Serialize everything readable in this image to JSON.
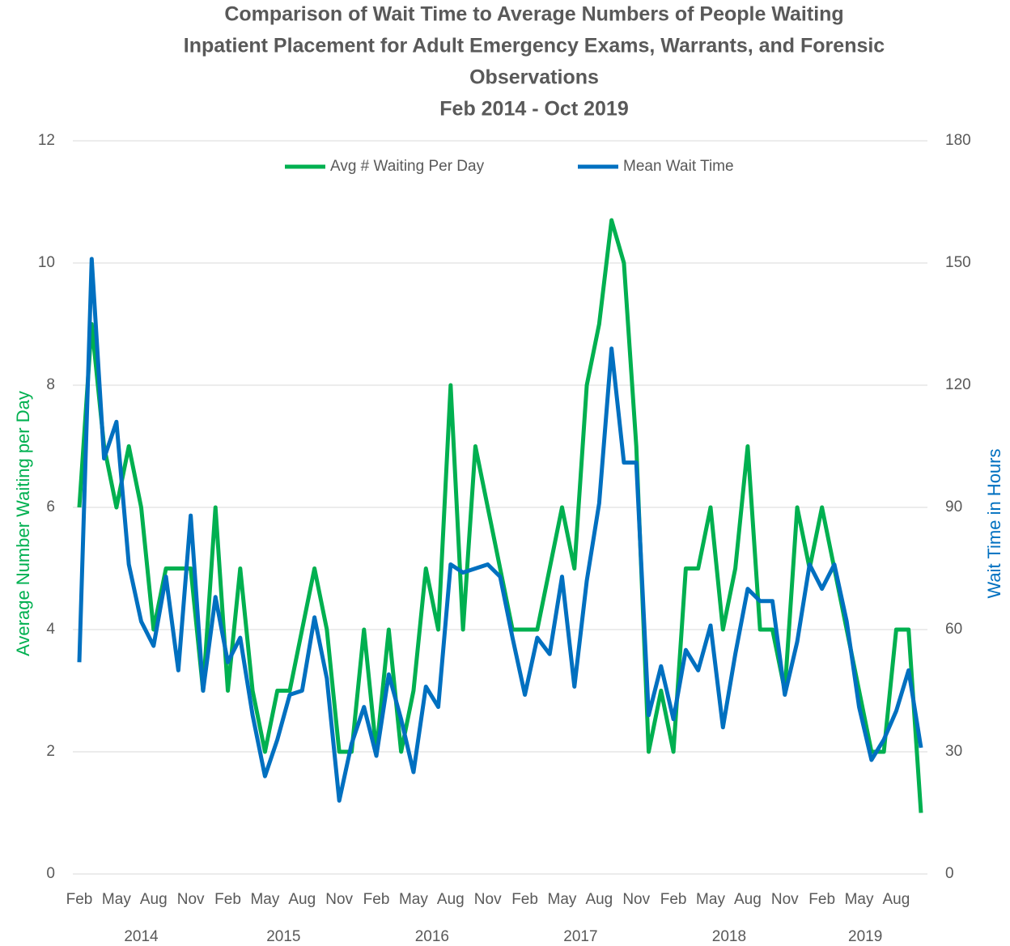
{
  "chart_data": {
    "type": "line",
    "title": [
      "Comparison of Wait Time to Average Numbers of People Waiting",
      "Inpatient Placement for Adult Emergency Exams, Warrants, and Forensic",
      "Observations",
      "Feb 2014 - Oct 2019"
    ],
    "categories": [
      "Feb",
      null,
      null,
      "May",
      null,
      null,
      "Aug",
      null,
      null,
      "Nov",
      null,
      null,
      "Feb",
      null,
      null,
      "May",
      null,
      null,
      "Aug",
      null,
      null,
      "Nov",
      null,
      null,
      "Feb",
      null,
      null,
      "May",
      null,
      null,
      "Aug",
      null,
      null,
      "Nov",
      null,
      null,
      "Feb",
      null,
      null,
      "May",
      null,
      null,
      "Aug",
      null,
      null,
      "Nov",
      null,
      null,
      "Feb",
      null,
      null,
      "May",
      null,
      null,
      "Aug",
      null,
      null,
      "Nov",
      null,
      null,
      "Feb",
      null,
      null,
      "May",
      null,
      null,
      "Aug",
      null,
      null
    ],
    "years": [
      "2014",
      "2015",
      "2016",
      "2017",
      "2018",
      "2019"
    ],
    "y_label": "Average Number Waiting per Day",
    "y2_label": "Wait Time in Hours",
    "ylim": [
      0,
      12
    ],
    "yticks": [
      0,
      2,
      4,
      6,
      8,
      10,
      12
    ],
    "y2lim": [
      0,
      180
    ],
    "y2ticks": [
      0,
      30,
      60,
      90,
      120,
      150,
      180
    ],
    "grid": true,
    "legend": "top",
    "series": [
      {
        "name": "Avg # Waiting Per Day",
        "color": "#00b050",
        "values": [
          6,
          9,
          7,
          6,
          7,
          6,
          4,
          5,
          5,
          5,
          3,
          6,
          3,
          5,
          3,
          2,
          3,
          3,
          4,
          5,
          4,
          2,
          2,
          4,
          2,
          4,
          2,
          3,
          5,
          4,
          8,
          4,
          7,
          6,
          5,
          4,
          4,
          4,
          5,
          6,
          5,
          8,
          9,
          10.7,
          10,
          7,
          2,
          3,
          2,
          5,
          5,
          6,
          4,
          5,
          7,
          4,
          4,
          3,
          6,
          5,
          6,
          5,
          4,
          3,
          2,
          2,
          4,
          4,
          1
        ]
      },
      {
        "name": "Mean Wait Time",
        "color": "#0070c0",
        "axis": "y2",
        "values": [
          52,
          151,
          102,
          111,
          76,
          62,
          56,
          73,
          50,
          88,
          45,
          68,
          52,
          58,
          39,
          24,
          33,
          44,
          45,
          63,
          48,
          18,
          32,
          41,
          29,
          49,
          38,
          25,
          46,
          41,
          76,
          74,
          75,
          76,
          73,
          58,
          44,
          58,
          54,
          73,
          46,
          72,
          91,
          129,
          101,
          101,
          39,
          51,
          38,
          55,
          50,
          61,
          36,
          54,
          70,
          67,
          67,
          44,
          57,
          76,
          70,
          76,
          62,
          41,
          28,
          33,
          40,
          50,
          31
        ]
      }
    ]
  }
}
